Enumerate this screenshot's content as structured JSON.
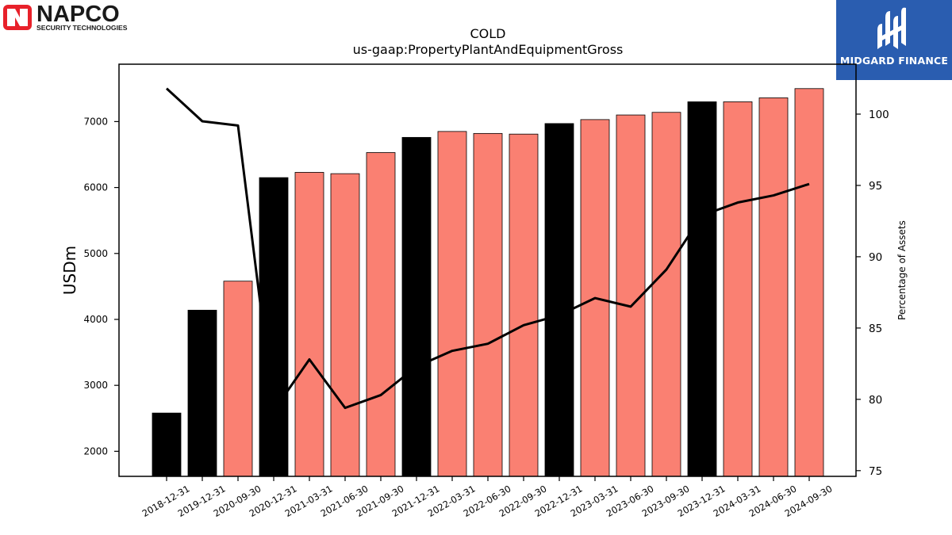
{
  "logos": {
    "left": {
      "name": "NAPCO",
      "tagline": "SECURITY TECHNOLOGIES"
    },
    "right": {
      "name": "MIDGARD FINANCE"
    }
  },
  "chart_data": {
    "type": "bar",
    "title": "COLD",
    "subtitle": "us-gaap:PropertyPlantAndEquipmentGross",
    "ylabel": "USDm",
    "y2label": "Percentage of Assets",
    "categories": [
      "2018-12-31",
      "2019-12-31",
      "2020-09-30",
      "2020-12-31",
      "2021-03-31",
      "2021-06-30",
      "2021-09-30",
      "2021-12-31",
      "2022-03-31",
      "2022-06-30",
      "2022-09-30",
      "2022-12-31",
      "2023-03-31",
      "2023-06-30",
      "2023-09-30",
      "2023-12-31",
      "2024-03-31",
      "2024-06-30",
      "2024-09-30"
    ],
    "series": [
      {
        "axis": "left",
        "kind": "bar",
        "values": [
          2580,
          4140,
          4580,
          6150,
          6230,
          6210,
          6530,
          6760,
          6850,
          6820,
          6810,
          6970,
          7030,
          7100,
          7140,
          7300,
          7300,
          7360,
          7500
        ],
        "annual": [
          true,
          true,
          false,
          true,
          false,
          false,
          false,
          true,
          false,
          false,
          false,
          true,
          false,
          false,
          false,
          true,
          false,
          false,
          false
        ]
      },
      {
        "axis": "right",
        "kind": "line",
        "values": [
          101.8,
          99.5,
          99.2,
          79.2,
          82.8,
          79.4,
          80.3,
          82.3,
          83.4,
          83.9,
          85.2,
          85.9,
          87.1,
          86.5,
          89.1,
          92.9,
          93.8,
          94.3,
          95.1
        ]
      }
    ],
    "ylim": [
      1620,
      7870
    ],
    "y2lim": [
      74.6,
      103.5
    ],
    "yticks": [
      2000,
      3000,
      4000,
      5000,
      6000,
      7000
    ],
    "y2ticks": [
      75,
      80,
      85,
      90,
      95,
      100
    ],
    "colors": {
      "annual_bar": "#000000",
      "quarter_bar": "#fa8072",
      "line": "#000000"
    },
    "grid": false,
    "legend": "none"
  }
}
